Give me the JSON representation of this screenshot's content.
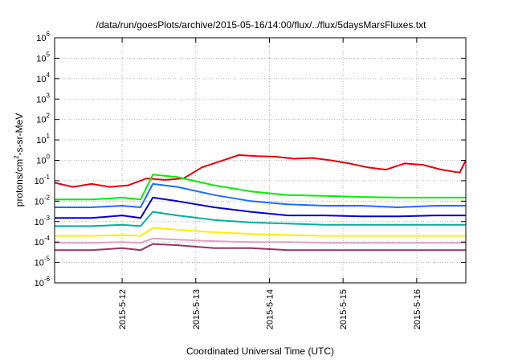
{
  "chart_data": {
    "type": "line",
    "title": "/data/run/goesPlots/archive/2015-05-16/14:00/flux/../flux/5daysMarsFluxes.txt",
    "xlabel": "Coordinated Universal Time (UTC)",
    "ylabel_parts": [
      "protons/cm",
      "2",
      "-s-sr-MeV"
    ],
    "yscale": "log",
    "xlim": [
      "2015-05-11T02:00",
      "2015-05-16T16:00"
    ],
    "ylim": [
      1e-06,
      1000000.0
    ],
    "grid": true,
    "legend": "none",
    "x_ticks": [
      {
        "x": "2015-05-12T00:00",
        "label": "2015-5-12"
      },
      {
        "x": "2015-05-13T00:00",
        "label": "2015-5-13"
      },
      {
        "x": "2015-05-14T00:00",
        "label": "2015-5-14"
      },
      {
        "x": "2015-05-15T00:00",
        "label": "2015-5-15"
      },
      {
        "x": "2015-05-16T00:00",
        "label": "2015-5-16"
      }
    ],
    "y_ticks": [
      {
        "base": "10",
        "exp": "-6",
        "value": 1e-06
      },
      {
        "base": "10",
        "exp": "-5",
        "value": 1e-05
      },
      {
        "base": "10",
        "exp": "-4",
        "value": 0.0001
      },
      {
        "base": "10",
        "exp": "-3",
        "value": 0.001
      },
      {
        "base": "10",
        "exp": "-2",
        "value": 0.01
      },
      {
        "base": "10",
        "exp": "-1",
        "value": 0.1
      },
      {
        "base": "10",
        "exp": "0",
        "value": 1
      },
      {
        "base": "10",
        "exp": "1",
        "value": 10
      },
      {
        "base": "10",
        "exp": "2",
        "value": 100
      },
      {
        "base": "10",
        "exp": "3",
        "value": 1000
      },
      {
        "base": "10",
        "exp": "4",
        "value": 10000
      },
      {
        "base": "10",
        "exp": "5",
        "value": 100000
      },
      {
        "base": "10",
        "exp": "6",
        "value": 1000000
      }
    ],
    "series": [
      {
        "color": "#e8000b",
        "points": [
          [
            "2015-05-11T02:00",
            0.08
          ],
          [
            "2015-05-11T08:00",
            0.05
          ],
          [
            "2015-05-11T14:00",
            0.07
          ],
          [
            "2015-05-11T20:00",
            0.05
          ],
          [
            "2015-05-12T02:00",
            0.06
          ],
          [
            "2015-05-12T08:00",
            0.13
          ],
          [
            "2015-05-12T14:00",
            0.11
          ],
          [
            "2015-05-12T20:00",
            0.13
          ],
          [
            "2015-05-13T02:00",
            0.45
          ],
          [
            "2015-05-13T08:00",
            0.9
          ],
          [
            "2015-05-13T14:00",
            1.8
          ],
          [
            "2015-05-13T20:00",
            1.6
          ],
          [
            "2015-05-14T02:00",
            1.5
          ],
          [
            "2015-05-14T08:00",
            1.2
          ],
          [
            "2015-05-14T14:00",
            1.3
          ],
          [
            "2015-05-14T20:00",
            1.0
          ],
          [
            "2015-05-15T02:00",
            0.7
          ],
          [
            "2015-05-15T08:00",
            0.45
          ],
          [
            "2015-05-15T14:00",
            0.35
          ],
          [
            "2015-05-15T20:00",
            0.7
          ],
          [
            "2015-05-16T02:00",
            0.6
          ],
          [
            "2015-05-16T08:00",
            0.35
          ],
          [
            "2015-05-16T14:00",
            0.25
          ],
          [
            "2015-05-16T16:00",
            1.0
          ]
        ]
      },
      {
        "color": "#00ee00",
        "points": [
          [
            "2015-05-11T02:00",
            0.012
          ],
          [
            "2015-05-11T14:00",
            0.012
          ],
          [
            "2015-05-12T00:00",
            0.015
          ],
          [
            "2015-05-12T06:00",
            0.012
          ],
          [
            "2015-05-12T10:00",
            0.2
          ],
          [
            "2015-05-12T18:00",
            0.15
          ],
          [
            "2015-05-13T06:00",
            0.06
          ],
          [
            "2015-05-13T18:00",
            0.03
          ],
          [
            "2015-05-14T06:00",
            0.02
          ],
          [
            "2015-05-14T18:00",
            0.018
          ],
          [
            "2015-05-15T06:00",
            0.016
          ],
          [
            "2015-05-15T18:00",
            0.015
          ],
          [
            "2015-05-16T06:00",
            0.015
          ],
          [
            "2015-05-16T16:00",
            0.015
          ]
        ]
      },
      {
        "color": "#1a6dff",
        "points": [
          [
            "2015-05-11T02:00",
            0.005
          ],
          [
            "2015-05-11T14:00",
            0.005
          ],
          [
            "2015-05-12T00:00",
            0.006
          ],
          [
            "2015-05-12T06:00",
            0.005
          ],
          [
            "2015-05-12T10:00",
            0.07
          ],
          [
            "2015-05-12T18:00",
            0.05
          ],
          [
            "2015-05-13T06:00",
            0.02
          ],
          [
            "2015-05-13T18:00",
            0.01
          ],
          [
            "2015-05-14T06:00",
            0.007
          ],
          [
            "2015-05-14T18:00",
            0.006
          ],
          [
            "2015-05-15T06:00",
            0.006
          ],
          [
            "2015-05-15T18:00",
            0.005
          ],
          [
            "2015-05-16T06:00",
            0.006
          ],
          [
            "2015-05-16T16:00",
            0.006
          ]
        ]
      },
      {
        "color": "#0000cc",
        "points": [
          [
            "2015-05-11T02:00",
            0.0015
          ],
          [
            "2015-05-11T14:00",
            0.0015
          ],
          [
            "2015-05-12T00:00",
            0.002
          ],
          [
            "2015-05-12T06:00",
            0.0015
          ],
          [
            "2015-05-12T10:00",
            0.015
          ],
          [
            "2015-05-12T18:00",
            0.01
          ],
          [
            "2015-05-13T06:00",
            0.005
          ],
          [
            "2015-05-13T18:00",
            0.003
          ],
          [
            "2015-05-14T06:00",
            0.002
          ],
          [
            "2015-05-14T18:00",
            0.002
          ],
          [
            "2015-05-15T06:00",
            0.0018
          ],
          [
            "2015-05-15T18:00",
            0.0018
          ],
          [
            "2015-05-16T06:00",
            0.002
          ],
          [
            "2015-05-16T16:00",
            0.002
          ]
        ]
      },
      {
        "color": "#00b0a0",
        "points": [
          [
            "2015-05-11T02:00",
            0.0006
          ],
          [
            "2015-05-11T14:00",
            0.0006
          ],
          [
            "2015-05-12T00:00",
            0.0007
          ],
          [
            "2015-05-12T06:00",
            0.0006
          ],
          [
            "2015-05-12T10:00",
            0.003
          ],
          [
            "2015-05-12T18:00",
            0.002
          ],
          [
            "2015-05-13T06:00",
            0.0012
          ],
          [
            "2015-05-13T18:00",
            0.0009
          ],
          [
            "2015-05-14T06:00",
            0.0008
          ],
          [
            "2015-05-14T18:00",
            0.0007
          ],
          [
            "2015-05-15T06:00",
            0.0007
          ],
          [
            "2015-05-15T18:00",
            0.0007
          ],
          [
            "2015-05-16T06:00",
            0.0007
          ],
          [
            "2015-05-16T16:00",
            0.0007
          ]
        ]
      },
      {
        "color": "#ffee00",
        "points": [
          [
            "2015-05-11T02:00",
            0.0002
          ],
          [
            "2015-05-11T14:00",
            0.0002
          ],
          [
            "2015-05-12T00:00",
            0.00022
          ],
          [
            "2015-05-12T06:00",
            0.0002
          ],
          [
            "2015-05-12T10:00",
            0.0005
          ],
          [
            "2015-05-12T18:00",
            0.0004
          ],
          [
            "2015-05-13T06:00",
            0.0003
          ],
          [
            "2015-05-13T18:00",
            0.00025
          ],
          [
            "2015-05-14T06:00",
            0.00022
          ],
          [
            "2015-05-14T18:00",
            0.0002
          ],
          [
            "2015-05-15T06:00",
            0.0002
          ],
          [
            "2015-05-15T18:00",
            0.0002
          ],
          [
            "2015-05-16T06:00",
            0.0002
          ],
          [
            "2015-05-16T16:00",
            0.0002
          ]
        ]
      },
      {
        "color": "#e0a0c0",
        "points": [
          [
            "2015-05-11T02:00",
            9e-05
          ],
          [
            "2015-05-11T14:00",
            9e-05
          ],
          [
            "2015-05-12T00:00",
            0.0001
          ],
          [
            "2015-05-12T06:00",
            9e-05
          ],
          [
            "2015-05-12T10:00",
            0.00015
          ],
          [
            "2015-05-12T18:00",
            0.00013
          ],
          [
            "2015-05-13T06:00",
            0.00011
          ],
          [
            "2015-05-13T18:00",
            0.0001
          ],
          [
            "2015-05-14T06:00",
            0.0001
          ],
          [
            "2015-05-14T18:00",
            9e-05
          ],
          [
            "2015-05-15T06:00",
            9e-05
          ],
          [
            "2015-05-15T18:00",
            9e-05
          ],
          [
            "2015-05-16T06:00",
            9e-05
          ],
          [
            "2015-05-16T16:00",
            9e-05
          ]
        ]
      },
      {
        "color": "#993366",
        "points": [
          [
            "2015-05-11T02:00",
            4e-05
          ],
          [
            "2015-05-11T14:00",
            4e-05
          ],
          [
            "2015-05-12T00:00",
            5e-05
          ],
          [
            "2015-05-12T06:00",
            4e-05
          ],
          [
            "2015-05-12T10:00",
            8e-05
          ],
          [
            "2015-05-12T18:00",
            7e-05
          ],
          [
            "2015-05-13T06:00",
            5e-05
          ],
          [
            "2015-05-13T18:00",
            5e-05
          ],
          [
            "2015-05-14T06:00",
            4e-05
          ],
          [
            "2015-05-14T18:00",
            4e-05
          ],
          [
            "2015-05-15T06:00",
            4e-05
          ],
          [
            "2015-05-15T18:00",
            4e-05
          ],
          [
            "2015-05-16T06:00",
            4e-05
          ],
          [
            "2015-05-16T16:00",
            4e-05
          ]
        ]
      }
    ]
  }
}
